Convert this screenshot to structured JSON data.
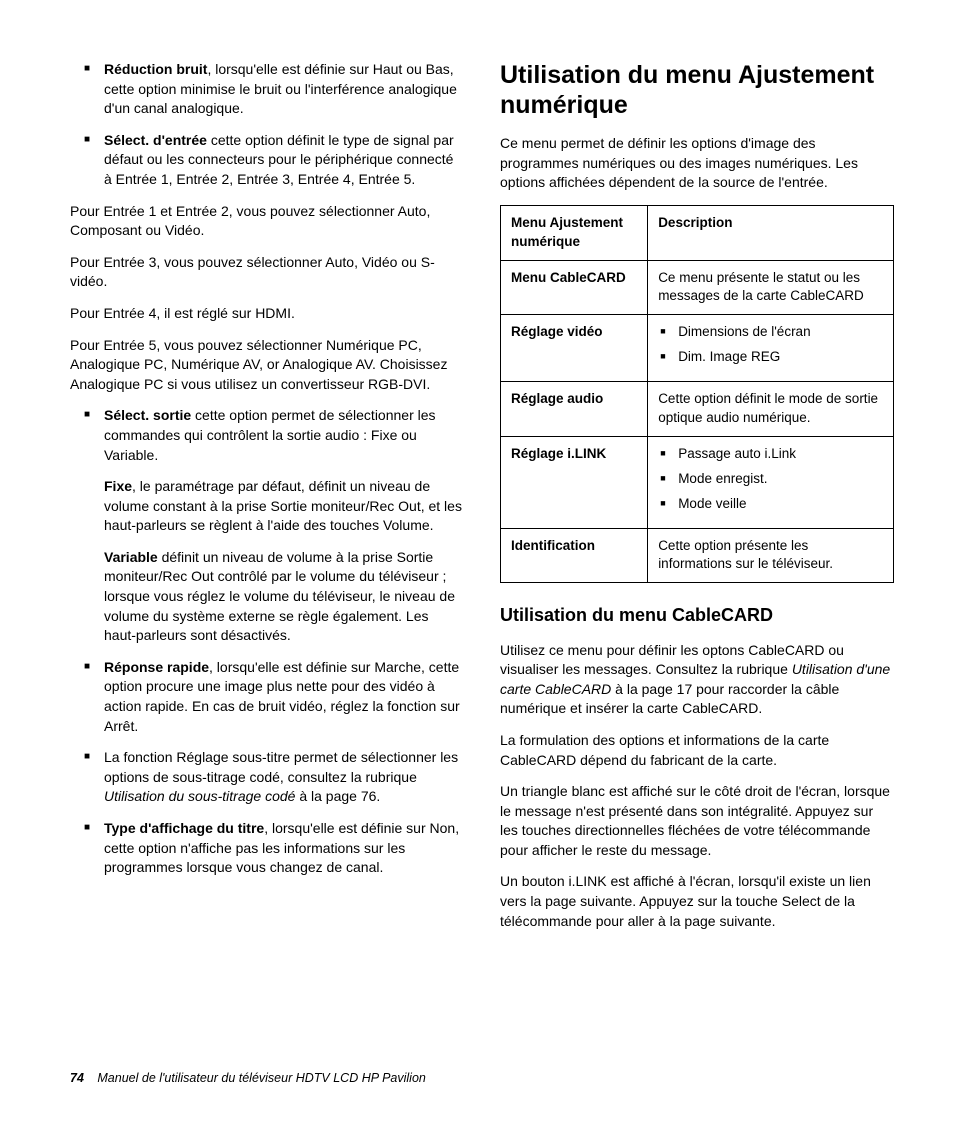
{
  "left": {
    "bullet1_bold": "Réduction bruit",
    "bullet1_rest": ", lorsqu'elle est définie sur Haut ou Bas, cette option minimise le bruit ou l'interférence analogique d'un canal analogique.",
    "bullet2_bold": "Sélect. d'entrée",
    "bullet2_rest": " cette option définit le type de signal par défaut ou les connecteurs pour le périphérique connecté à Entrée 1, Entrée 2, Entrée 3, Entrée 4, Entrée 5.",
    "p1": "Pour Entrée 1 et Entrée 2, vous pouvez sélectionner Auto, Composant ou Vidéo.",
    "p2": "Pour Entrée 3, vous pouvez sélectionner Auto, Vidéo ou S-vidéo.",
    "p3": "Pour Entrée 4, il est réglé sur HDMI.",
    "p4": "Pour Entrée 5, vous pouvez sélectionner Numérique PC, Analogique PC, Numérique AV, or Analogique AV. Choisissez Analogique PC si vous utilisez un convertisseur RGB-DVI.",
    "bullet3_bold": "Sélect. sortie",
    "bullet3_rest": " cette option permet de sélectionner les commandes qui contrôlent la sortie audio : Fixe ou Variable.",
    "sub1_bold": "Fixe",
    "sub1_rest": ", le paramétrage par défaut, définit un niveau de volume constant à la prise Sortie moniteur/Rec Out, et les haut-parleurs se règlent à l'aide des touches Volume.",
    "sub2_bold": "Variable",
    "sub2_rest": " définit un niveau de volume à la prise Sortie moniteur/Rec Out contrôlé par le volume du téléviseur ; lorsque vous réglez le volume du téléviseur, le niveau de volume du système externe se règle également. Les haut-parleurs sont désactivés.",
    "bullet4_bold": "Réponse rapide",
    "bullet4_rest": ", lorsqu'elle est définie sur Marche, cette option procure une image plus nette pour des vidéo à action rapide. En cas de bruit vidéo, réglez la fonction sur Arrêt.",
    "bullet5_pre": "La fonction Réglage sous-titre permet de sélectionner les options de sous-titrage codé, consultez la rubrique ",
    "bullet5_ital": "Utilisation du sous-titrage codé",
    "bullet5_post": " à la page 76.",
    "bullet6_bold": "Type d'affichage du titre",
    "bullet6_rest": ", lorsqu'elle est définie sur Non, cette option n'affiche pas les informations sur les programmes lorsque vous changez de canal."
  },
  "right": {
    "h1": "Utilisation du menu Ajustement numérique",
    "intro": "Ce menu permet de définir les options d'image des programmes numériques ou des images numériques. Les options affichées dépendent de la source de l'entrée.",
    "table": {
      "head_col1": "Menu Ajustement numérique",
      "head_col2": "Description",
      "rows": [
        {
          "label": "Menu CableCARD",
          "desc_text": "Ce menu présente le statut ou les messages de la carte CableCARD"
        },
        {
          "label": "Réglage vidéo",
          "desc_list": [
            "Dimensions de l'écran",
            "Dim. Image REG"
          ]
        },
        {
          "label": "Réglage audio",
          "desc_text": "Cette option définit le mode de sortie optique audio numérique."
        },
        {
          "label": "Réglage i.LINK",
          "desc_list": [
            "Passage auto i.Link",
            "Mode enregist.",
            "Mode veille"
          ]
        },
        {
          "label": "Identification",
          "desc_text": "Cette option présente les informations sur le téléviseur."
        }
      ]
    },
    "h2": "Utilisation du menu CableCARD",
    "p1_pre": "Utilisez ce menu pour définir les optons CableCARD ou visualiser les messages. Consultez la rubrique ",
    "p1_ital": "Utilisation d'une carte CableCARD",
    "p1_post": " à la page 17 pour raccorder la câble numérique et insérer la carte CableCARD.",
    "p2": "La formulation des options et informations de la carte CableCARD dépend du fabricant de la carte.",
    "p3": "Un triangle blanc est affiché sur le côté droit de l'écran, lorsque le message n'est présenté dans son intégralité. Appuyez sur les touches directionnelles fléchées de votre télécommande pour afficher le reste du message.",
    "p4": "Un bouton i.LINK est affiché à l'écran, lorsqu'il existe un lien vers la page suivante. Appuyez sur la touche Select de la télécommande pour aller à la page suivante."
  },
  "footer": {
    "page": "74",
    "title": "Manuel de l'utilisateur du téléviseur HDTV LCD HP Pavilion"
  }
}
